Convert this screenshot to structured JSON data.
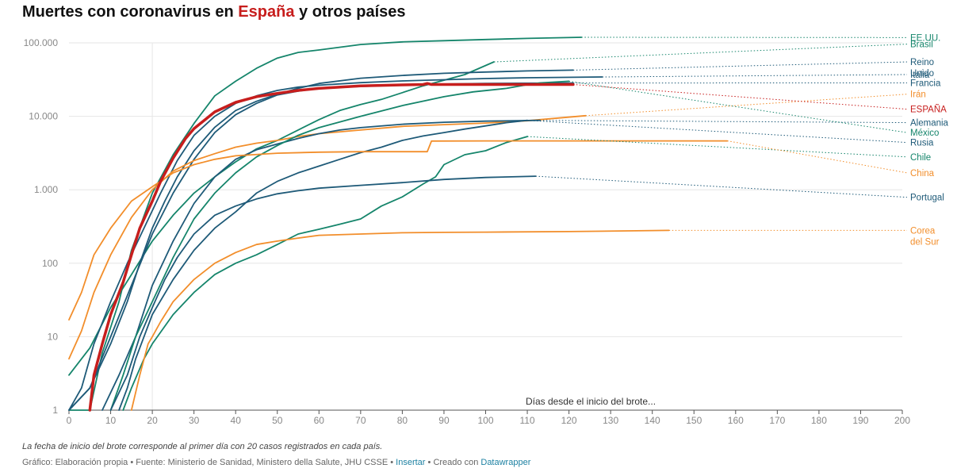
{
  "title": {
    "before": "Muertes con coronavirus en ",
    "highlight": "España",
    "after": " y otros países"
  },
  "note": "La fecha de inicio del brote corresponde al primer día con 20 casos registrados en cada país.",
  "footer": {
    "source": "Gráfico: Elaboración propia • Fuente: Ministerio de Sanidad, Ministero della Salute, JHU CSSE •",
    "insert_link": "Insertar",
    "created": "• Creado con",
    "datawrapper_link": "Datawrapper"
  },
  "colors": {
    "highlight": "#c71e1d",
    "teal": "#15856b",
    "navy": "#1e5a78",
    "orange": "#f28e2b",
    "grid": "#e6e6e6",
    "link": "#1d81a2"
  },
  "chart_data": {
    "type": "line",
    "xlabel": "Días desde el inicio del brote...",
    "ylabel": "",
    "y_scale": "log",
    "xlim": [
      0,
      200
    ],
    "ylim": [
      1,
      100000
    ],
    "x_ticks": [
      0,
      10,
      20,
      30,
      40,
      50,
      60,
      70,
      80,
      90,
      100,
      110,
      120,
      130,
      140,
      150,
      160,
      170,
      180,
      190,
      200
    ],
    "y_ticks": [
      {
        "value": 1,
        "label": "1"
      },
      {
        "value": 10,
        "label": "10"
      },
      {
        "value": 100,
        "label": "100"
      },
      {
        "value": 1000,
        "label": "1.000"
      },
      {
        "value": 10000,
        "label": "10.000"
      },
      {
        "value": 100000,
        "label": "100.000"
      }
    ],
    "grid": true,
    "legend": "direct labels on the right",
    "series": [
      {
        "name": "EE.UU.",
        "color": "teal",
        "label_y": 118000,
        "points": [
          [
            0,
            1
          ],
          [
            5,
            1
          ],
          [
            8,
            6
          ],
          [
            12,
            30
          ],
          [
            15,
            150
          ],
          [
            20,
            900
          ],
          [
            25,
            3000
          ],
          [
            30,
            8000
          ],
          [
            35,
            19000
          ],
          [
            40,
            30000
          ],
          [
            45,
            45000
          ],
          [
            50,
            62000
          ],
          [
            55,
            74000
          ],
          [
            60,
            80000
          ],
          [
            70,
            95000
          ],
          [
            80,
            103000
          ],
          [
            90,
            107000
          ],
          [
            100,
            111000
          ],
          [
            110,
            115000
          ],
          [
            123,
            119000
          ]
        ]
      },
      {
        "name": "Brasil",
        "color": "teal",
        "label_y": 96000,
        "points": [
          [
            0,
            3
          ],
          [
            5,
            7
          ],
          [
            10,
            25
          ],
          [
            15,
            70
          ],
          [
            20,
            200
          ],
          [
            25,
            450
          ],
          [
            30,
            900
          ],
          [
            35,
            1500
          ],
          [
            40,
            2400
          ],
          [
            45,
            3600
          ],
          [
            50,
            4700
          ],
          [
            55,
            6500
          ],
          [
            60,
            9000
          ],
          [
            65,
            12000
          ],
          [
            70,
            14500
          ],
          [
            75,
            17000
          ],
          [
            80,
            21000
          ],
          [
            85,
            26000
          ],
          [
            90,
            31000
          ],
          [
            95,
            37000
          ],
          [
            102,
            55000
          ]
        ]
      },
      {
        "name": "Reino Unido",
        "color": "navy",
        "label_y": 55000,
        "points": [
          [
            0,
            1
          ],
          [
            5,
            2
          ],
          [
            10,
            8
          ],
          [
            14,
            30
          ],
          [
            17,
            100
          ],
          [
            20,
            300
          ],
          [
            23,
            700
          ],
          [
            26,
            1500
          ],
          [
            30,
            3400
          ],
          [
            35,
            7100
          ],
          [
            40,
            12000
          ],
          [
            45,
            16000
          ],
          [
            50,
            20000
          ],
          [
            55,
            24000
          ],
          [
            60,
            28000
          ],
          [
            70,
            33000
          ],
          [
            80,
            36000
          ],
          [
            90,
            38500
          ],
          [
            100,
            40000
          ],
          [
            110,
            41500
          ],
          [
            121,
            42500
          ]
        ]
      },
      {
        "name": "Italia",
        "color": "navy",
        "label_y": 37000,
        "points": [
          [
            0,
            1
          ],
          [
            3,
            2
          ],
          [
            6,
            8
          ],
          [
            10,
            30
          ],
          [
            14,
            100
          ],
          [
            18,
            300
          ],
          [
            22,
            900
          ],
          [
            26,
            2500
          ],
          [
            30,
            5500
          ],
          [
            35,
            10000
          ],
          [
            40,
            15000
          ],
          [
            45,
            19000
          ],
          [
            50,
            22500
          ],
          [
            55,
            25000
          ],
          [
            60,
            26500
          ],
          [
            70,
            28700
          ],
          [
            80,
            30300
          ],
          [
            90,
            31500
          ],
          [
            100,
            32700
          ],
          [
            110,
            33500
          ],
          [
            128,
            34300
          ]
        ]
      },
      {
        "name": "Francia",
        "color": "navy",
        "label_y": 28500,
        "points": [
          [
            0,
            1
          ],
          [
            5,
            2
          ],
          [
            10,
            10
          ],
          [
            15,
            50
          ],
          [
            20,
            250
          ],
          [
            25,
            900
          ],
          [
            30,
            2600
          ],
          [
            35,
            6000
          ],
          [
            40,
            10500
          ],
          [
            45,
            15000
          ],
          [
            50,
            19500
          ],
          [
            55,
            22000
          ],
          [
            60,
            24000
          ],
          [
            70,
            25500
          ],
          [
            80,
            26500
          ],
          [
            90,
            27500
          ],
          [
            100,
            28000
          ],
          [
            110,
            28200
          ],
          [
            121,
            28400
          ]
        ]
      },
      {
        "name": "Irán",
        "color": "orange",
        "label_y": 20000,
        "points": [
          [
            0,
            5
          ],
          [
            3,
            12
          ],
          [
            6,
            40
          ],
          [
            10,
            130
          ],
          [
            15,
            420
          ],
          [
            20,
            1000
          ],
          [
            25,
            1800
          ],
          [
            30,
            2500
          ],
          [
            35,
            3100
          ],
          [
            40,
            3800
          ],
          [
            45,
            4300
          ],
          [
            50,
            4700
          ],
          [
            55,
            5300
          ],
          [
            60,
            5800
          ],
          [
            70,
            6500
          ],
          [
            80,
            7300
          ],
          [
            90,
            7700
          ],
          [
            100,
            8100
          ],
          [
            110,
            8700
          ],
          [
            124,
            10200
          ]
        ]
      },
      {
        "name": "ESPAÑA",
        "color": "highlight",
        "bold": true,
        "label_y": 12500,
        "points": [
          [
            5,
            1
          ],
          [
            6,
            3
          ],
          [
            8,
            8
          ],
          [
            10,
            20
          ],
          [
            13,
            55
          ],
          [
            15,
            130
          ],
          [
            17,
            300
          ],
          [
            20,
            700
          ],
          [
            22,
            1300
          ],
          [
            25,
            2700
          ],
          [
            28,
            5000
          ],
          [
            30,
            6800
          ],
          [
            35,
            11500
          ],
          [
            40,
            15500
          ],
          [
            45,
            18500
          ],
          [
            50,
            20500
          ],
          [
            55,
            22500
          ],
          [
            60,
            24000
          ],
          [
            70,
            26000
          ],
          [
            80,
            26800
          ],
          [
            85,
            27100
          ],
          [
            86,
            28000
          ],
          [
            87,
            27100
          ],
          [
            90,
            27100
          ],
          [
            100,
            27100
          ],
          [
            121,
            27100
          ]
        ]
      },
      {
        "name": "Alemania",
        "color": "navy",
        "label_y": 8200,
        "points": [
          [
            8,
            1
          ],
          [
            12,
            3
          ],
          [
            16,
            10
          ],
          [
            20,
            50
          ],
          [
            25,
            200
          ],
          [
            30,
            650
          ],
          [
            35,
            1500
          ],
          [
            40,
            2600
          ],
          [
            45,
            3500
          ],
          [
            50,
            4200
          ],
          [
            55,
            5000
          ],
          [
            60,
            5800
          ],
          [
            65,
            6500
          ],
          [
            70,
            7000
          ],
          [
            80,
            7800
          ],
          [
            90,
            8300
          ],
          [
            100,
            8600
          ],
          [
            113,
            8800
          ]
        ]
      },
      {
        "name": "México",
        "color": "teal",
        "label_y": 6000,
        "points": [
          [
            10,
            1
          ],
          [
            13,
            3
          ],
          [
            16,
            10
          ],
          [
            20,
            30
          ],
          [
            25,
            120
          ],
          [
            30,
            400
          ],
          [
            35,
            900
          ],
          [
            40,
            1700
          ],
          [
            45,
            2800
          ],
          [
            50,
            4000
          ],
          [
            55,
            5500
          ],
          [
            60,
            7000
          ],
          [
            70,
            10000
          ],
          [
            80,
            14000
          ],
          [
            90,
            18500
          ],
          [
            97,
            21500
          ],
          [
            105,
            24000
          ],
          [
            110,
            27000
          ],
          [
            113,
            28500
          ],
          [
            120,
            30000
          ]
        ]
      },
      {
        "name": "Rusia",
        "color": "navy",
        "label_y": 4400,
        "points": [
          [
            12,
            1
          ],
          [
            14,
            2
          ],
          [
            16,
            5
          ],
          [
            18,
            10
          ],
          [
            20,
            20
          ],
          [
            25,
            60
          ],
          [
            30,
            150
          ],
          [
            35,
            300
          ],
          [
            40,
            500
          ],
          [
            45,
            900
          ],
          [
            50,
            1300
          ],
          [
            55,
            1700
          ],
          [
            60,
            2100
          ],
          [
            65,
            2600
          ],
          [
            70,
            3200
          ],
          [
            75,
            3800
          ],
          [
            80,
            4700
          ],
          [
            85,
            5400
          ],
          [
            90,
            6000
          ],
          [
            95,
            6700
          ],
          [
            100,
            7400
          ],
          [
            105,
            8200
          ],
          [
            110,
            8800
          ]
        ]
      },
      {
        "name": "Chile",
        "color": "teal",
        "label_y": 2800,
        "points": [
          [
            13,
            1
          ],
          [
            15,
            2
          ],
          [
            18,
            5
          ],
          [
            20,
            8
          ],
          [
            25,
            20
          ],
          [
            30,
            40
          ],
          [
            35,
            70
          ],
          [
            40,
            100
          ],
          [
            45,
            130
          ],
          [
            50,
            180
          ],
          [
            55,
            250
          ],
          [
            60,
            290
          ],
          [
            65,
            340
          ],
          [
            70,
            400
          ],
          [
            75,
            600
          ],
          [
            80,
            800
          ],
          [
            85,
            1200
          ],
          [
            88,
            1500
          ],
          [
            90,
            2200
          ],
          [
            95,
            3000
          ],
          [
            100,
            3400
          ],
          [
            105,
            4400
          ],
          [
            110,
            5300
          ]
        ]
      },
      {
        "name": "China",
        "color": "orange",
        "label_y": 1700,
        "points": [
          [
            0,
            17
          ],
          [
            3,
            40
          ],
          [
            6,
            130
          ],
          [
            10,
            300
          ],
          [
            15,
            700
          ],
          [
            20,
            1100
          ],
          [
            25,
            1700
          ],
          [
            30,
            2200
          ],
          [
            35,
            2600
          ],
          [
            40,
            2900
          ],
          [
            50,
            3150
          ],
          [
            60,
            3250
          ],
          [
            70,
            3300
          ],
          [
            86,
            3300
          ],
          [
            87,
            4600
          ],
          [
            100,
            4630
          ],
          [
            120,
            4630
          ],
          [
            140,
            4630
          ],
          [
            158,
            4630
          ]
        ]
      },
      {
        "name": "Portugal",
        "color": "navy",
        "label_y": 790,
        "points": [
          [
            10,
            1
          ],
          [
            14,
            3
          ],
          [
            17,
            10
          ],
          [
            20,
            25
          ],
          [
            23,
            60
          ],
          [
            26,
            120
          ],
          [
            30,
            250
          ],
          [
            35,
            450
          ],
          [
            40,
            600
          ],
          [
            45,
            750
          ],
          [
            50,
            880
          ],
          [
            55,
            970
          ],
          [
            60,
            1050
          ],
          [
            70,
            1150
          ],
          [
            80,
            1250
          ],
          [
            90,
            1380
          ],
          [
            100,
            1470
          ],
          [
            112,
            1530
          ]
        ]
      },
      {
        "name": "Corea del Sur",
        "color": "orange",
        "label_y": 280,
        "points": [
          [
            15,
            1
          ],
          [
            17,
            3
          ],
          [
            19,
            8
          ],
          [
            20,
            10
          ],
          [
            22,
            16
          ],
          [
            25,
            30
          ],
          [
            30,
            60
          ],
          [
            35,
            100
          ],
          [
            40,
            140
          ],
          [
            45,
            180
          ],
          [
            50,
            200
          ],
          [
            55,
            220
          ],
          [
            60,
            240
          ],
          [
            70,
            250
          ],
          [
            80,
            260
          ],
          [
            90,
            263
          ],
          [
            100,
            265
          ],
          [
            120,
            270
          ],
          [
            144,
            280
          ]
        ]
      }
    ]
  }
}
